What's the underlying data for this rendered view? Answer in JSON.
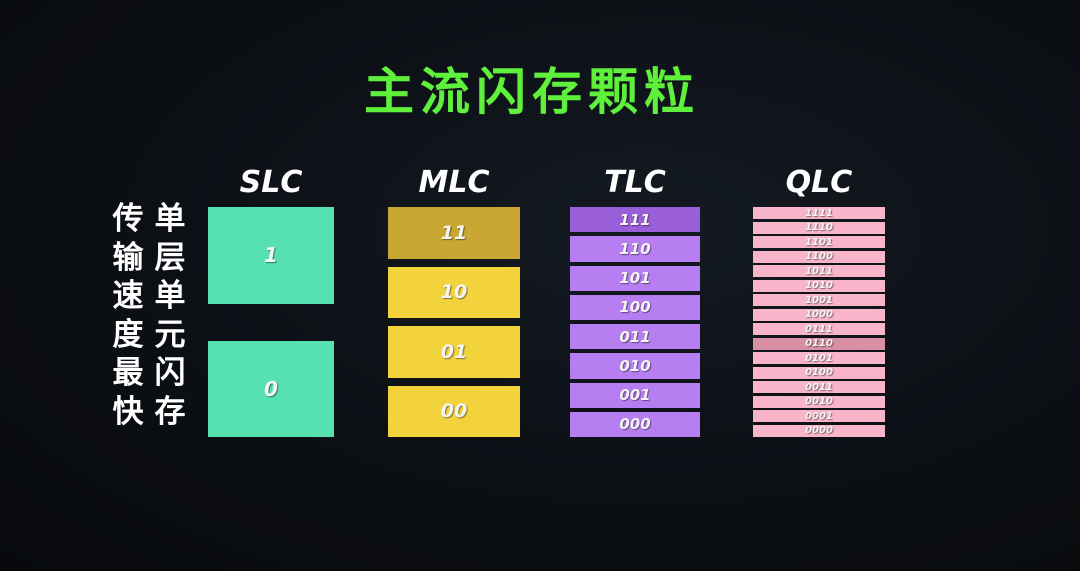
{
  "title": "主流闪存颗粒",
  "side_text_1": [
    "传",
    "输",
    "速",
    "度",
    "最",
    "快"
  ],
  "side_text_2": [
    "单",
    "层",
    "单",
    "元",
    "闪",
    "存"
  ],
  "columns": [
    {
      "label": "SLC",
      "color": "#57e0b0",
      "highlight_color": "#57e0b0",
      "cells": [
        "1",
        "0"
      ]
    },
    {
      "label": "MLC",
      "color": "#f3d33c",
      "highlight_color": "#c9a732",
      "cells": [
        "11",
        "10",
        "01",
        "00"
      ]
    },
    {
      "label": "TLC",
      "color": "#b67ef0",
      "highlight_color": "#9a5fd8",
      "cells": [
        "111",
        "110",
        "101",
        "100",
        "011",
        "010",
        "001",
        "000"
      ]
    },
    {
      "label": "QLC",
      "color": "#f8b5c9",
      "highlight_color": "#d990a4",
      "cells": [
        "1111",
        "1110",
        "1101",
        "1100",
        "1011",
        "1010",
        "1001",
        "1000",
        "0111",
        "0110",
        "0101",
        "0100",
        "0011",
        "0010",
        "0001",
        "0000"
      ]
    }
  ]
}
